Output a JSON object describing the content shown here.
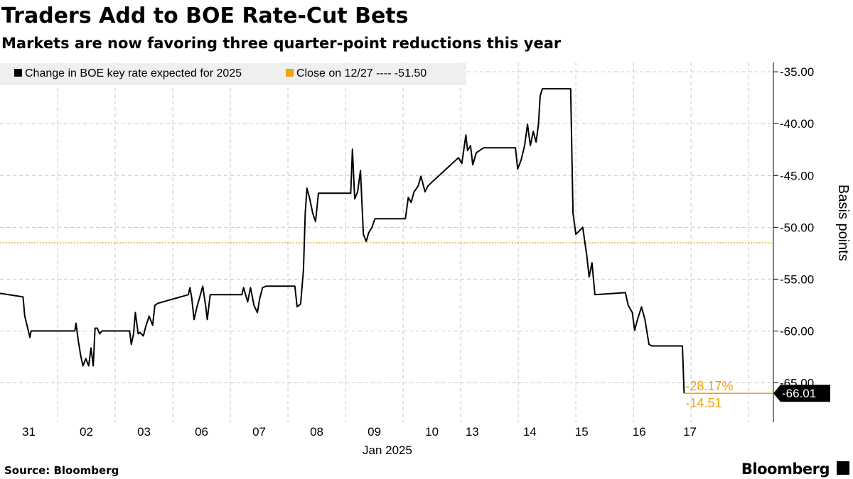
{
  "chart_data": {
    "type": "line",
    "title": "Traders Add to BOE Rate-Cut Bets",
    "subtitle": "Markets are now favoring three quarter-point reductions this year",
    "y_axis_label": "Basis points",
    "x_axis_label": "Jan 2025",
    "source": "Source: Bloomberg",
    "brand": "Bloomberg",
    "xlim": [
      0,
      13.43
    ],
    "xticks": [
      {
        "value": 0.5,
        "label": "31"
      },
      {
        "value": 1.5,
        "label": "02"
      },
      {
        "value": 2.5,
        "label": "03"
      },
      {
        "value": 3.5,
        "label": "06"
      },
      {
        "value": 4.5,
        "label": "07"
      },
      {
        "value": 5.5,
        "label": "08"
      },
      {
        "value": 6.5,
        "label": "09"
      },
      {
        "value": 7.5,
        "label": "10"
      },
      {
        "value": 8.2,
        "label": "13"
      },
      {
        "value": 9.2,
        "label": "14"
      },
      {
        "value": 10.1,
        "label": "15"
      },
      {
        "value": 11.1,
        "label": "16"
      },
      {
        "value": 11.98,
        "label": "17"
      }
    ],
    "x_gridlines": [
      1,
      2,
      3,
      4,
      5,
      6,
      7,
      8,
      9,
      10,
      11,
      12,
      13
    ],
    "ylim": [
      -68.8,
      -34.1
    ],
    "yticks": [
      {
        "value": -35,
        "label": "-35.00"
      },
      {
        "value": -40,
        "label": "-40.00"
      },
      {
        "value": -45,
        "label": "-45.00"
      },
      {
        "value": -50,
        "label": "-50.00"
      },
      {
        "value": -55,
        "label": "-55.00"
      },
      {
        "value": -60,
        "label": "-60.00"
      },
      {
        "value": -65,
        "label": "-65.00"
      }
    ],
    "grid": true,
    "series": [
      {
        "name": "Change in BOE key rate expected for 2025",
        "color": "#000000",
        "x": [
          0,
          0.4,
          0.43,
          0.49,
          0.52,
          0.54,
          1.3,
          1.32,
          1.36,
          1.4,
          1.44,
          1.49,
          1.54,
          1.58,
          1.62,
          1.65,
          1.69,
          1.73,
          1.77,
          2.25,
          2.28,
          2.32,
          2.35,
          2.4,
          2.43,
          2.49,
          2.53,
          2.59,
          2.65,
          2.69,
          2.74,
          3.27,
          3.3,
          3.33,
          3.37,
          3.42,
          3.47,
          3.52,
          3.57,
          3.6,
          3.65,
          4.2,
          4.23,
          4.3,
          4.35,
          4.41,
          4.47,
          4.51,
          4.56,
          4.62,
          5.12,
          5.16,
          5.22,
          5.27,
          5.3,
          5.33,
          5.38,
          5.43,
          5.48,
          5.53,
          6.09,
          6.12,
          6.16,
          6.21,
          6.26,
          6.31,
          6.36,
          6.4,
          6.46,
          6.51,
          7.04,
          7.09,
          7.14,
          7.19,
          7.26,
          7.31,
          7.38,
          7.43,
          7.48,
          7.96,
          8.02,
          8.09,
          8.12,
          8.17,
          8.21,
          8.27,
          8.4,
          8.95,
          8.99,
          9.05,
          9.11,
          9.16,
          9.21,
          9.26,
          9.31,
          9.35,
          9.38,
          9.42,
          9.91,
          9.95,
          10.0,
          10.06,
          10.12,
          10.19,
          10.23,
          10.28,
          10.33,
          10.86,
          10.91,
          10.98,
          11.02,
          11.07,
          11.14,
          11.2,
          11.27,
          11.32,
          11.85,
          11.88
        ],
        "values": [
          -56.37,
          -56.71,
          -58.56,
          -59.93,
          -60.62,
          -60.0,
          -60.0,
          -59.25,
          -60.96,
          -62.33,
          -63.36,
          -62.67,
          -63.36,
          -61.64,
          -63.36,
          -59.73,
          -59.73,
          -60.27,
          -60.0,
          -60.0,
          -61.3,
          -60.27,
          -58.22,
          -60.27,
          -60.14,
          -60.48,
          -59.59,
          -58.56,
          -59.45,
          -57.53,
          -57.33,
          -56.5,
          -55.82,
          -56.85,
          -58.9,
          -57.67,
          -56.71,
          -55.68,
          -57.53,
          -58.9,
          -56.5,
          -56.5,
          -55.82,
          -57.19,
          -55.82,
          -57.53,
          -58.22,
          -56.85,
          -55.82,
          -55.68,
          -55.68,
          -57.67,
          -57.4,
          -54.11,
          -48.63,
          -46.23,
          -47.26,
          -48.63,
          -49.45,
          -46.71,
          -46.71,
          -42.47,
          -47.26,
          -46.58,
          -44.52,
          -50.68,
          -51.37,
          -50.55,
          -50.0,
          -49.18,
          -49.18,
          -47.12,
          -47.6,
          -46.58,
          -46.03,
          -45.07,
          -46.58,
          -46.03,
          -45.75,
          -43.29,
          -43.84,
          -41.1,
          -42.6,
          -42.12,
          -43.97,
          -42.81,
          -42.33,
          -42.33,
          -44.38,
          -43.49,
          -42.12,
          -40.07,
          -42.12,
          -40.75,
          -41.78,
          -40.07,
          -37.33,
          -36.64,
          -36.64,
          -48.63,
          -50.68,
          -50.34,
          -50.0,
          -52.74,
          -54.79,
          -53.42,
          -56.5,
          -56.3,
          -57.53,
          -58.22,
          -59.93,
          -58.9,
          -57.67,
          -58.9,
          -61.3,
          -61.44,
          -61.44,
          -66.01
        ],
        "value_labels": {
          "117": "-66.01"
        }
      }
    ],
    "reference_line": {
      "label": "Close on 12/27 ---- -51.50",
      "value": -51.5,
      "color": "#f0a30a"
    },
    "annotations": [
      "-28.17%",
      "-14.51"
    ]
  }
}
